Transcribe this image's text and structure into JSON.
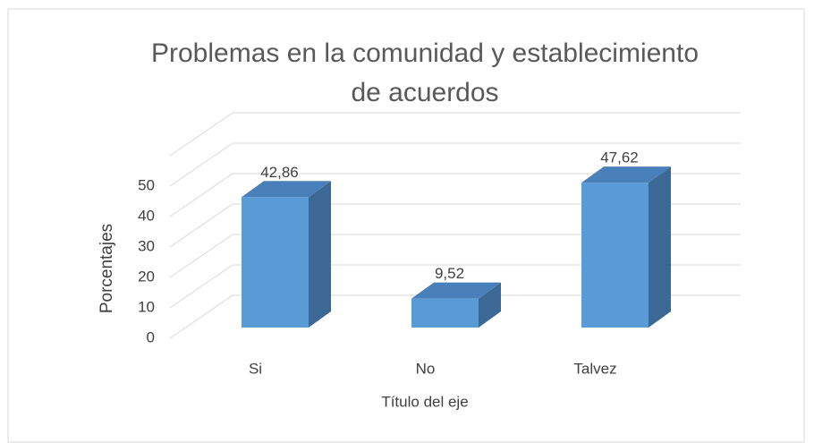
{
  "chart_data": {
    "type": "bar3d",
    "title": "Problemas en la comunidad y establecimiento de acuerdos",
    "categories": [
      "Si",
      "No",
      "Talvez"
    ],
    "values": [
      42.86,
      9.52,
      47.62
    ],
    "value_labels": [
      "42,86",
      "9,52",
      "47,62"
    ],
    "color": "#5b9bd5",
    "ylim": [
      0,
      60
    ],
    "yticks": [
      0,
      10,
      20,
      30,
      40,
      50
    ],
    "grid": true,
    "x_label": "Título del eje",
    "y_label": "Porcentajes"
  }
}
